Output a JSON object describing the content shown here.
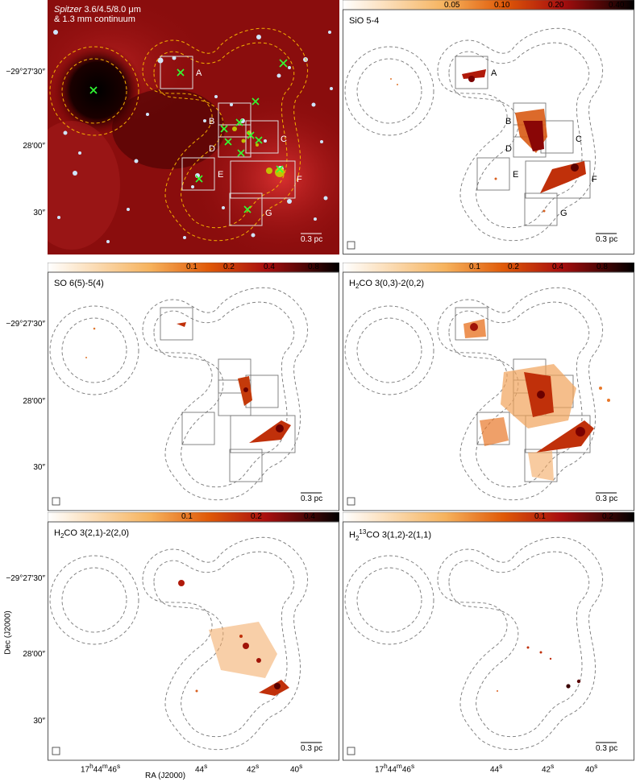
{
  "figure": {
    "y_axis_label": "Dec (J2000)",
    "x_axis_label": "RA (J2000)",
    "y_ticks": [
      "−29°27′30″",
      "28′00″",
      "30″"
    ],
    "x_ticks": [
      "17h44m46s",
      "44s",
      "42s",
      "40s"
    ],
    "scale_bar": "0.3 pc",
    "region_labels": [
      "A",
      "B",
      "C",
      "D",
      "E",
      "F",
      "G"
    ]
  },
  "panels": [
    {
      "id": "spitzer",
      "title_italic": "Spitzer",
      "title_rest": "3.6/4.5/8.0 μm",
      "title_line2": "& 1.3 mm continuum",
      "colorbar_ticks": []
    },
    {
      "id": "sio",
      "title": "SiO 5-4",
      "colorbar_ticks": [
        "0.05",
        "0.10",
        "0.20",
        "0.40"
      ]
    },
    {
      "id": "so",
      "title": "SO 6(5)-5(4)",
      "colorbar_ticks": [
        "0.1",
        "0.2",
        "0.4",
        "0.8"
      ]
    },
    {
      "id": "h2co303",
      "title": "H2CO 3(0,3)-2(0,2)",
      "colorbar_ticks": [
        "0.1",
        "0.2",
        "0.4",
        "0.8"
      ]
    },
    {
      "id": "h2co321",
      "title": "H2CO 3(2,1)-2(2,0)",
      "colorbar_ticks": [
        "0.1",
        "0.2",
        "0.4"
      ]
    },
    {
      "id": "h213co",
      "title": "H213CO 3(1,2)-2(1,1)",
      "colorbar_ticks": [
        "0.1",
        "0.2"
      ]
    }
  ],
  "colors": {
    "frame": "#555555",
    "contour": "#777777",
    "contour_spitzer": "#f5b000",
    "cross": "#33ff33",
    "emission_dark": "#6b0000",
    "emission_mid": "#d23c00",
    "emission_light": "#f39a3c"
  }
}
